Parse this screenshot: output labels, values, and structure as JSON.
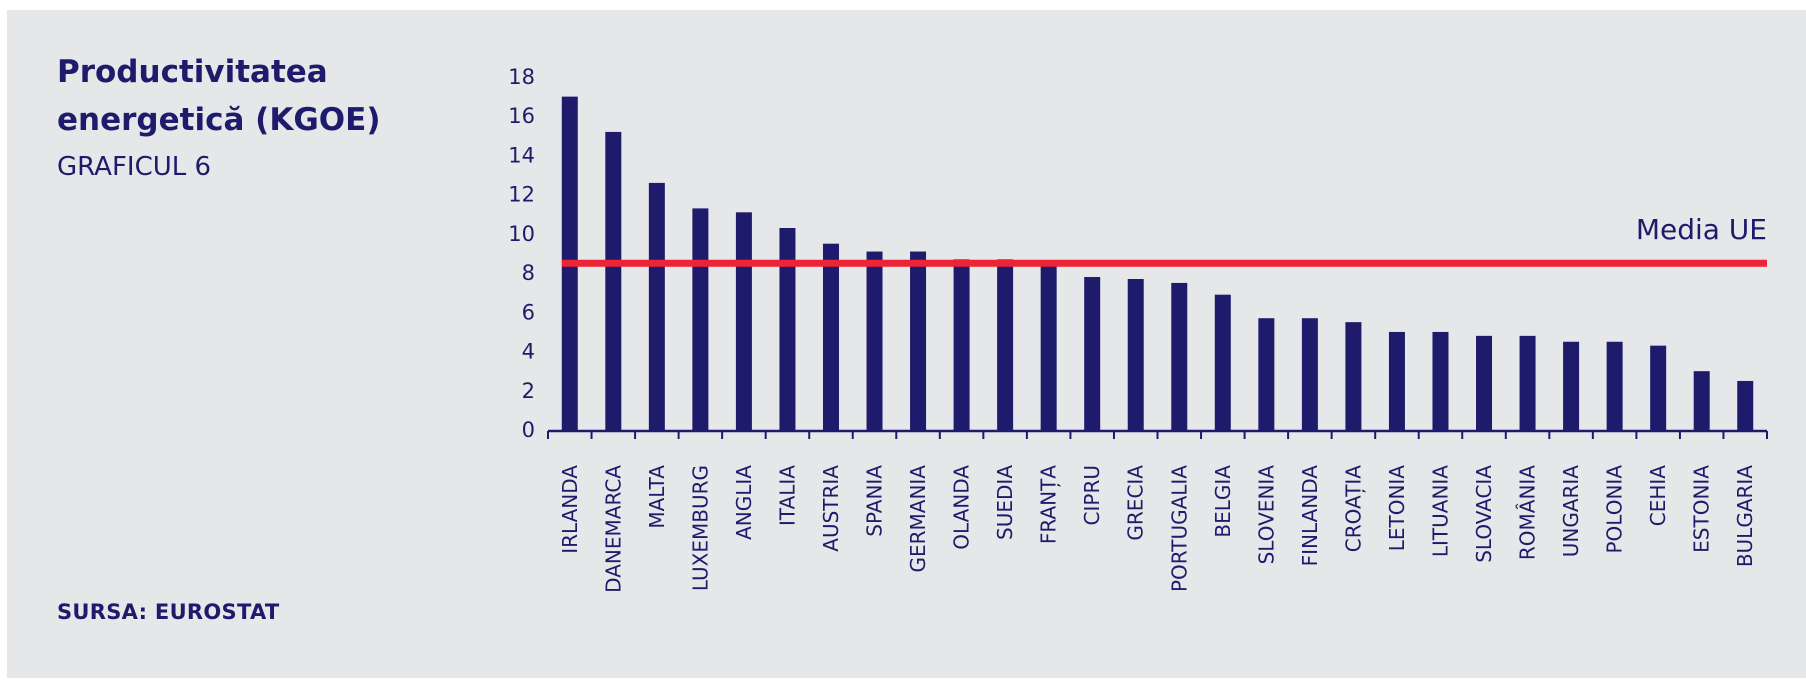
{
  "header": {
    "title": "Productivitatea energetică (KGOE)",
    "subtitle": "GRAFICUL 6"
  },
  "footer": {
    "source": "SURSA: EUROSTAT"
  },
  "colors": {
    "background": "#e6e7e9",
    "bar": "#1f1b6c",
    "reference_line": "#ee2436",
    "text": "#1f1b6c"
  },
  "chart_data": {
    "type": "bar",
    "title": "Productivitatea energetică (KGOE)",
    "xlabel": "",
    "ylabel": "",
    "ylim": [
      0,
      18
    ],
    "yticks": [
      0,
      2,
      4,
      6,
      8,
      10,
      12,
      14,
      16,
      18
    ],
    "grid": false,
    "categories": [
      "IRLANDA",
      "DANEMARCA",
      "MALTA",
      "LUXEMBURG",
      "ANGLIA",
      "ITALIA",
      "AUSTRIA",
      "SPANIA",
      "GERMANIA",
      "OLANDA",
      "SUEDIA",
      "FRANȚA",
      "CIPRU",
      "GRECIA",
      "PORTUGALIA",
      "BELGIA",
      "SLOVENIA",
      "FINLANDA",
      "CROAȚIA",
      "LETONIA",
      "LITUANIA",
      "SLOVACIA",
      "ROMÂNIA",
      "UNGARIA",
      "POLONIA",
      "CEHIA",
      "ESTONIA",
      "BULGARIA"
    ],
    "values": [
      17.0,
      15.2,
      12.6,
      11.3,
      11.1,
      10.3,
      9.5,
      9.1,
      9.1,
      8.7,
      8.7,
      8.4,
      7.8,
      7.7,
      7.5,
      6.9,
      5.7,
      5.7,
      5.5,
      5.0,
      5.0,
      4.8,
      4.8,
      4.5,
      4.5,
      4.3,
      3.0,
      2.5
    ],
    "reference_line": {
      "label": "Media UE",
      "value": 8.5
    }
  }
}
